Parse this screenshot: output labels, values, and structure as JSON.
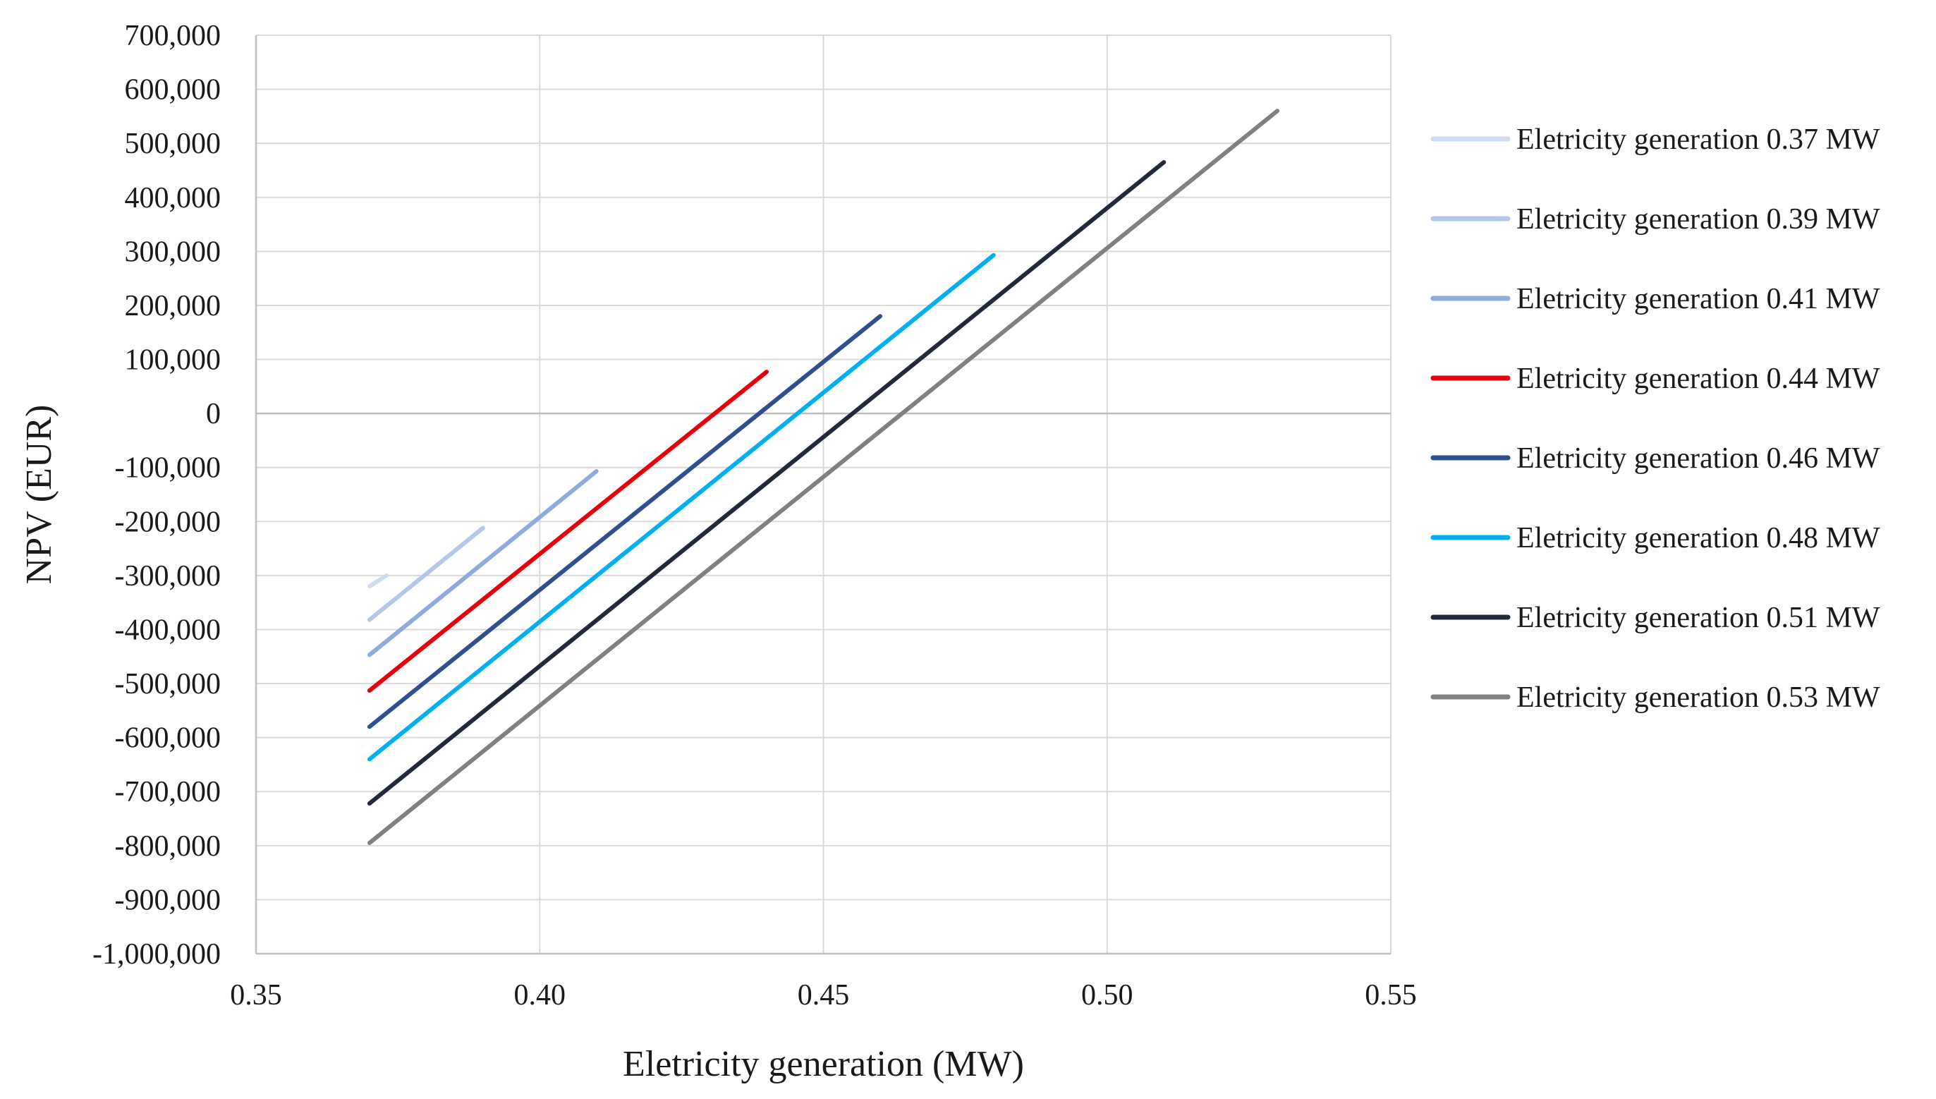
{
  "chart_data": {
    "type": "line",
    "title": "",
    "xlabel": "Eletricity generation (MW)",
    "ylabel": "NPV (EUR)",
    "xlim": [
      0.35,
      0.55
    ],
    "ylim": [
      -1000000,
      700000
    ],
    "x_ticks": [
      0.35,
      0.4,
      0.45,
      0.5,
      0.55
    ],
    "x_tick_labels": [
      "0.35",
      "0.40",
      "0.45",
      "0.50",
      "0.55"
    ],
    "y_ticks": [
      700000,
      600000,
      500000,
      400000,
      300000,
      200000,
      100000,
      0,
      -100000,
      -200000,
      -300000,
      -400000,
      -500000,
      -600000,
      -700000,
      -800000,
      -900000,
      -1000000
    ],
    "y_tick_labels": [
      "700,000",
      "600,000",
      "500,000",
      "400,000",
      "300,000",
      "200,000",
      "100,000",
      "0",
      "-100,000",
      "-200,000",
      "-300,000",
      "-400,000",
      "-500,000",
      "-600,000",
      "-700,000",
      "-800,000",
      "-900,000",
      "-1,000,000"
    ],
    "grid": true,
    "legend_position": "right",
    "series": [
      {
        "name": "Eletricity generation 0.37 MW",
        "color": "#cfdcf0",
        "x": [
          0.37,
          0.373
        ],
        "y": [
          -320000,
          -300000
        ]
      },
      {
        "name": "Eletricity generation 0.39 MW",
        "color": "#b4c7e7",
        "x": [
          0.37,
          0.39
        ],
        "y": [
          -382000,
          -212000
        ]
      },
      {
        "name": "Eletricity generation 0.41 MW",
        "color": "#8faadc",
        "x": [
          0.37,
          0.41
        ],
        "y": [
          -447000,
          -107000
        ]
      },
      {
        "name": "Eletricity generation 0.44 MW",
        "color": "#e8000b",
        "x": [
          0.37,
          0.44
        ],
        "y": [
          -513000,
          77000
        ]
      },
      {
        "name": "Eletricity generation 0.46 MW",
        "color": "#2f4f8f",
        "x": [
          0.37,
          0.46
        ],
        "y": [
          -580000,
          180000
        ]
      },
      {
        "name": "Eletricity generation 0.48 MW",
        "color": "#00b0f0",
        "x": [
          0.37,
          0.48
        ],
        "y": [
          -640000,
          293000
        ]
      },
      {
        "name": "Eletricity generation 0.51 MW",
        "color": "#222a3a",
        "x": [
          0.37,
          0.51
        ],
        "y": [
          -722000,
          465000
        ]
      },
      {
        "name": "Eletricity generation 0.53 MW",
        "color": "#808080",
        "x": [
          0.37,
          0.53
        ],
        "y": [
          -795000,
          560000
        ]
      }
    ]
  }
}
